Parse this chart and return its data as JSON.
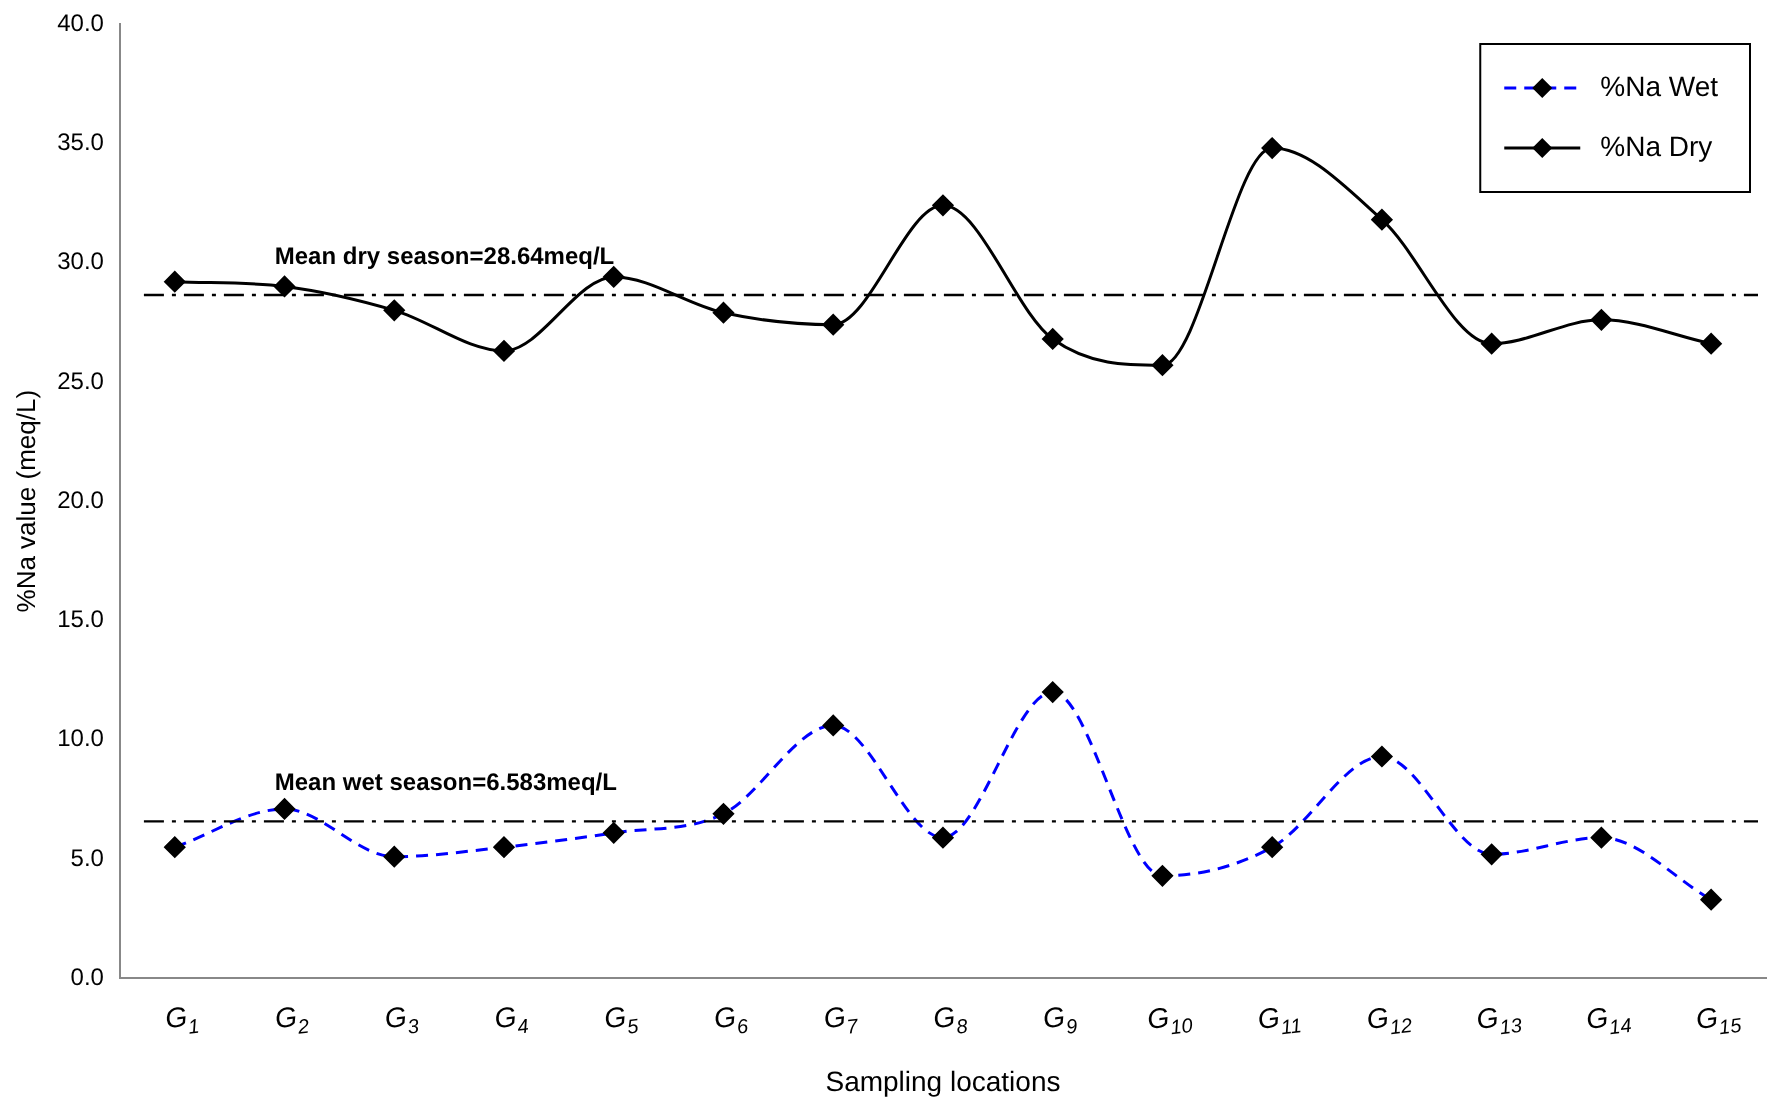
{
  "chart_data": {
    "type": "line",
    "xlabel": "Sampling locations",
    "ylabel": "%Na value (meq/L)",
    "categories": [
      "G$_{1}$",
      "G$_{2}$",
      "G$_{3}$",
      "G$_{4}$",
      "G$_{5}$",
      "G$_{6}$",
      "G$_{7}$",
      "G$_{8}$",
      "G$_{9}$",
      "G$_{10}$",
      "G$_{11}$",
      "G$_{12}$",
      "G$_{13}$",
      "G$_{14}$",
      "G$_{15}$"
    ],
    "series": [
      {
        "name": "%Na Wet",
        "color": "#0000ff",
        "line_style": "dashed",
        "values": [
          5.5,
          7.1,
          5.1,
          5.5,
          6.1,
          6.9,
          10.6,
          5.9,
          12.0,
          4.3,
          5.5,
          9.3,
          5.2,
          5.9,
          3.3
        ]
      },
      {
        "name": "%Na Dry",
        "color": "#000000",
        "line_style": "solid",
        "values": [
          29.2,
          29.0,
          28.0,
          26.3,
          29.4,
          27.9,
          27.4,
          32.4,
          26.8,
          25.7,
          34.8,
          31.8,
          26.6,
          27.6,
          26.6
        ]
      }
    ],
    "ylim": [
      0,
      40
    ],
    "yticks": [
      {
        "value": 0,
        "label": "0.0"
      },
      {
        "value": 5,
        "label": "5.0"
      },
      {
        "value": 10,
        "label": "10.0"
      },
      {
        "value": 15,
        "label": "15.0"
      },
      {
        "value": 20,
        "label": "20.0"
      },
      {
        "value": 25,
        "label": "25.0"
      },
      {
        "value": 30,
        "label": "30.0"
      },
      {
        "value": 35,
        "label": "35.0"
      },
      {
        "value": 40,
        "label": "40.0"
      }
    ],
    "ref_lines": [
      {
        "axis": "y",
        "value": 28.64,
        "label": "Mean dry season=28.64meq/L",
        "color": "#000000",
        "line_style": "dashdot"
      },
      {
        "axis": "y",
        "value": 6.583,
        "label": "Mean wet season=6.583meq/L",
        "color": "#000000",
        "line_style": "dashdot"
      }
    ],
    "marker": "diamond",
    "grid": false,
    "legend": "top right"
  }
}
